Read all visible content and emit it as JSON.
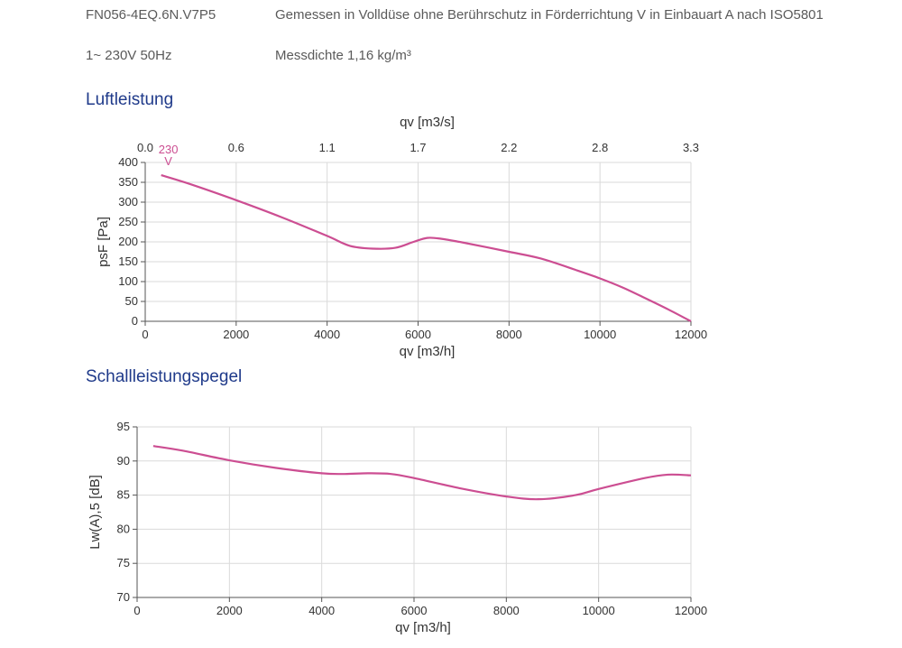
{
  "header": {
    "model": "FN056-4EQ.6N.V7P5",
    "description": "Gemessen in Volldüse ohne Berührschutz in Förderrichtung V in Einbauart A nach ISO5801",
    "voltage": "1~ 230V 50Hz",
    "density": "Messdichte 1,16 kg/m³"
  },
  "colors": {
    "curve": "#cc4e92",
    "title": "#1f3a8a",
    "grid": "#dadada"
  },
  "chart_data": [
    {
      "type": "line",
      "title": "Luftleistung",
      "xlabel": "qv [m3/h]",
      "x2label": "qv [m3/s]",
      "ylabel": "psF [Pa]",
      "xlim": [
        0,
        12000
      ],
      "ylim": [
        0,
        400
      ],
      "xticks": [
        "0",
        "2000",
        "4000",
        "6000",
        "8000",
        "10000",
        "12000"
      ],
      "x2ticks": [
        "0.0",
        "0.6",
        "1.1",
        "1.7",
        "2.2",
        "2.8",
        "3.3"
      ],
      "yticks": [
        "0",
        "50",
        "100",
        "150",
        "200",
        "250",
        "300",
        "350",
        "400"
      ],
      "series": [
        {
          "name": "230 V",
          "x": [
            350,
            1000,
            2000,
            3000,
            4000,
            4500,
            5000,
            5500,
            5900,
            6200,
            6500,
            7000,
            8000,
            8700,
            9500,
            10000,
            10500,
            11000,
            11500,
            12000
          ],
          "y": [
            368,
            345,
            305,
            262,
            215,
            190,
            183,
            185,
            200,
            210,
            208,
            198,
            175,
            158,
            128,
            108,
            85,
            58,
            30,
            0
          ]
        }
      ]
    },
    {
      "type": "line",
      "title": "Schallleistungspegel",
      "xlabel": "qv [m3/h]",
      "ylabel": "Lw(A),5 [dB]",
      "xlim": [
        0,
        12000
      ],
      "ylim": [
        70,
        95
      ],
      "xticks": [
        "0",
        "2000",
        "4000",
        "6000",
        "8000",
        "10000",
        "12000"
      ],
      "yticks": [
        "70",
        "75",
        "80",
        "85",
        "90",
        "95"
      ],
      "series": [
        {
          "x": [
            350,
            1000,
            2000,
            3000,
            4000,
            4500,
            5000,
            5500,
            6000,
            7000,
            8000,
            8700,
            9500,
            10000,
            11000,
            11500,
            12000
          ],
          "y": [
            92.2,
            91.5,
            90.1,
            89,
            88.2,
            88.1,
            88.2,
            88.1,
            87.5,
            86.0,
            84.8,
            84.4,
            85.0,
            85.9,
            87.5,
            88.0,
            87.9
          ]
        }
      ]
    }
  ]
}
